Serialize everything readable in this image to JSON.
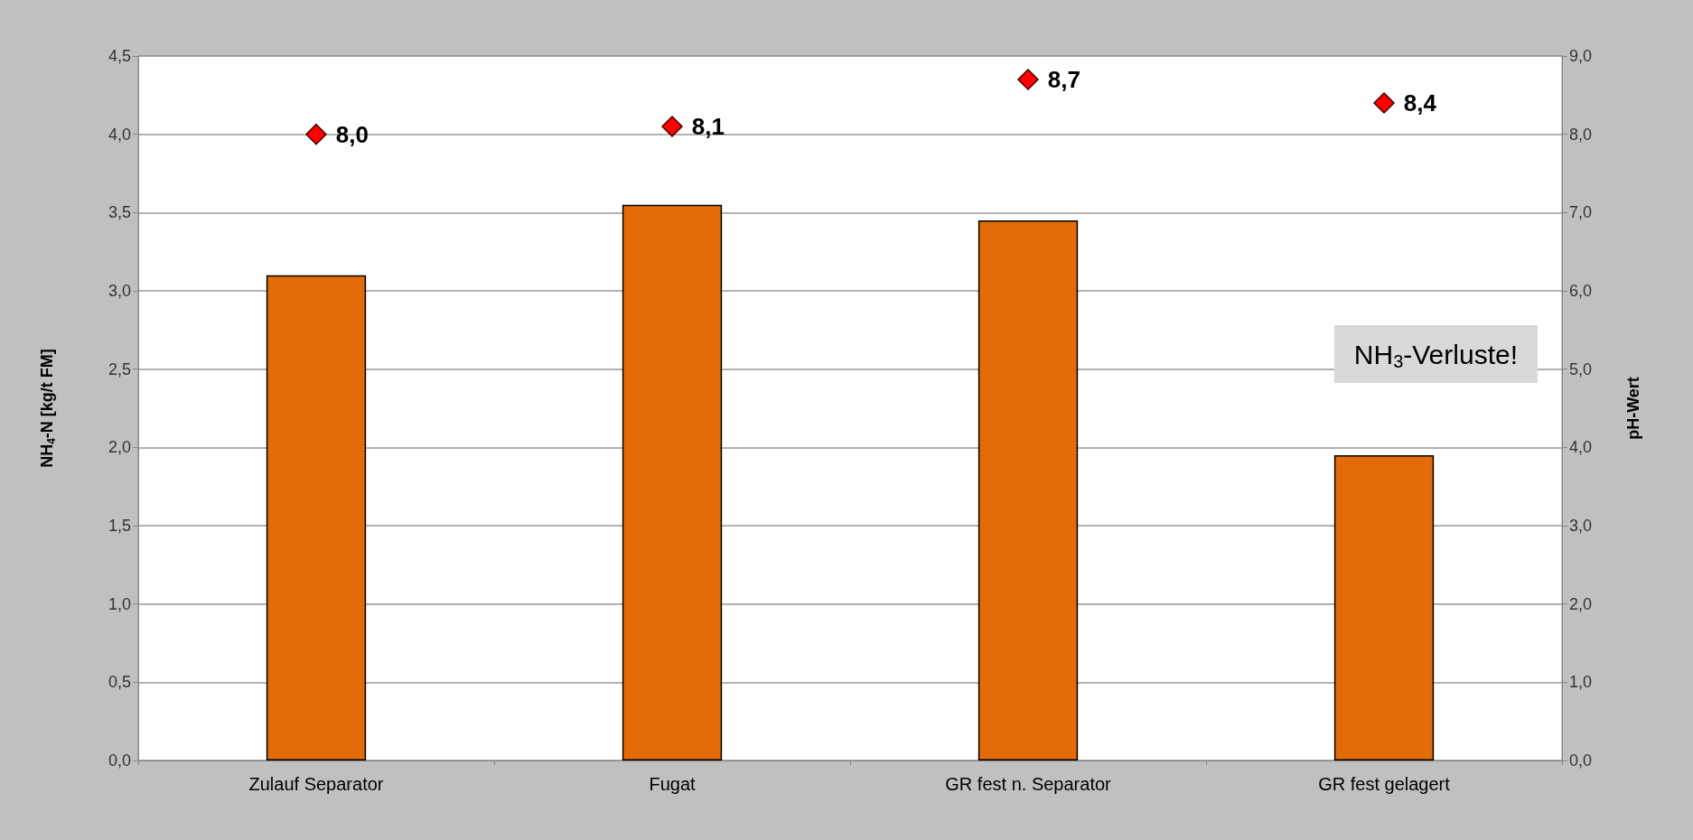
{
  "chart_data": {
    "type": "bar",
    "categories": [
      "Zulauf Separator",
      "Fugat",
      "GR fest n. Separator",
      "GR fest gelagert"
    ],
    "ylabel": "NH$_{4}$-N [kg/t FM]",
    "y2label": "pH-Wert",
    "series": [
      {
        "color": "#e36c0a",
        "values": [
          3.1,
          3.55,
          3.45,
          1.95
        ]
      },
      {
        "type": "scatter",
        "axis": "y2",
        "color": "#ff0000",
        "marker": "diamond",
        "values": [
          8.0,
          8.1,
          8.7,
          8.4
        ],
        "value_labels": [
          "8,0",
          "8,1",
          "8,7",
          "8,4"
        ]
      }
    ],
    "ylim": [
      0,
      4.5
    ],
    "yticks": [
      {
        "value": 0,
        "label": "0,0"
      },
      {
        "value": 0.5,
        "label": "0,5"
      },
      {
        "value": 1,
        "label": "1,0"
      },
      {
        "value": 1.5,
        "label": "1,5"
      },
      {
        "value": 2,
        "label": "2,0"
      },
      {
        "value": 2.5,
        "label": "2,5"
      },
      {
        "value": 3,
        "label": "3,0"
      },
      {
        "value": 3.5,
        "label": "3,5"
      },
      {
        "value": 4,
        "label": "4,0"
      },
      {
        "value": 4.5,
        "label": "4,5"
      }
    ],
    "y2lim": [
      0,
      9
    ],
    "y2ticks": [
      {
        "value": 0,
        "label": "0,0"
      },
      {
        "value": 1,
        "label": "1,0"
      },
      {
        "value": 2,
        "label": "2,0"
      },
      {
        "value": 3,
        "label": "3,0"
      },
      {
        "value": 4,
        "label": "4,0"
      },
      {
        "value": 5,
        "label": "5,0"
      },
      {
        "value": 6,
        "label": "6,0"
      },
      {
        "value": 7,
        "label": "7,0"
      },
      {
        "value": 8,
        "label": "8,0"
      },
      {
        "value": 9,
        "label": "9,0"
      }
    ],
    "grid": "y",
    "annotations": [
      "NH$_{3}$-Verluste!"
    ]
  }
}
